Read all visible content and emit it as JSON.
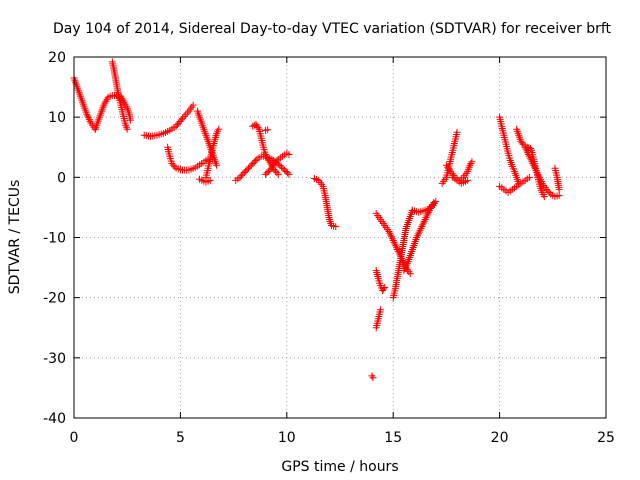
{
  "chart_data": {
    "type": "scatter",
    "title": "Day 104 of 2014, Sidereal Day-to-day VTEC variation (SDTVAR) for receiver brft",
    "xlabel": "GPS time / hours",
    "ylabel": "SDTVAR / TECUs",
    "xlim": [
      0,
      25
    ],
    "ylim": [
      -40,
      20
    ],
    "xticks": [
      0,
      5,
      10,
      15,
      20,
      25
    ],
    "yticks": [
      -40,
      -30,
      -20,
      -10,
      0,
      10,
      20
    ],
    "xtick_labels": [
      "0",
      "5",
      "10",
      "15",
      "20",
      "25"
    ],
    "ytick_labels": [
      "-40",
      "-30",
      "-20",
      "-10",
      "0",
      "10",
      "20"
    ],
    "grid": true,
    "marker": "+",
    "marker_color": "#ff0000",
    "series_segments": [
      [
        [
          0.0,
          16.5
        ],
        [
          0.2,
          14.5
        ],
        [
          0.4,
          12.5
        ],
        [
          0.6,
          10.5
        ],
        [
          0.8,
          9.0
        ],
        [
          1.0,
          8.0
        ]
      ],
      [
        [
          1.0,
          8.0
        ],
        [
          1.2,
          10.0
        ],
        [
          1.4,
          12.0
        ],
        [
          1.6,
          13.3
        ],
        [
          1.8,
          13.6
        ],
        [
          2.0,
          13.6
        ],
        [
          2.2,
          13.0
        ]
      ],
      [
        [
          1.8,
          19.2
        ],
        [
          1.9,
          17.5
        ],
        [
          2.0,
          15.5
        ],
        [
          2.1,
          13.5
        ],
        [
          2.2,
          12.0
        ],
        [
          2.3,
          10.5
        ],
        [
          2.4,
          9.0
        ],
        [
          2.5,
          8.0
        ]
      ],
      [
        [
          2.2,
          13.5
        ],
        [
          2.35,
          12.5
        ],
        [
          2.5,
          11.5
        ],
        [
          2.6,
          10.5
        ],
        [
          2.65,
          9.5
        ]
      ],
      [
        [
          3.3,
          7.0
        ],
        [
          3.6,
          6.8
        ],
        [
          3.9,
          7.0
        ],
        [
          4.2,
          7.3
        ],
        [
          4.5,
          7.8
        ],
        [
          4.8,
          8.5
        ],
        [
          5.1,
          9.8
        ],
        [
          5.4,
          11.0
        ],
        [
          5.6,
          12.0
        ]
      ],
      [
        [
          4.4,
          5.0
        ],
        [
          4.5,
          3.5
        ],
        [
          4.6,
          2.3
        ],
        [
          4.8,
          1.5
        ],
        [
          5.1,
          1.2
        ],
        [
          5.4,
          1.2
        ],
        [
          5.7,
          1.6
        ],
        [
          6.0,
          2.3
        ],
        [
          6.3,
          3.0
        ],
        [
          6.5,
          3.0
        ]
      ],
      [
        [
          5.8,
          11.0
        ],
        [
          5.9,
          10.0
        ],
        [
          6.0,
          9.0
        ],
        [
          6.1,
          8.0
        ],
        [
          6.2,
          7.0
        ],
        [
          6.3,
          6.0
        ],
        [
          6.4,
          5.0
        ],
        [
          6.5,
          4.0
        ],
        [
          6.6,
          3.0
        ],
        [
          6.7,
          2.0
        ]
      ],
      [
        [
          6.2,
          0.0
        ],
        [
          6.3,
          1.5
        ],
        [
          6.4,
          3.0
        ],
        [
          6.5,
          4.5
        ],
        [
          6.6,
          6.0
        ],
        [
          6.7,
          7.3
        ],
        [
          6.8,
          8.0
        ]
      ],
      [
        [
          5.9,
          -0.3
        ],
        [
          6.2,
          -0.8
        ],
        [
          6.4,
          -0.5
        ]
      ],
      [
        [
          7.6,
          -0.5
        ],
        [
          7.8,
          0.0
        ],
        [
          8.0,
          0.8
        ],
        [
          8.2,
          1.5
        ],
        [
          8.4,
          2.3
        ],
        [
          8.6,
          3.0
        ],
        [
          8.8,
          3.5
        ],
        [
          9.0,
          3.5
        ],
        [
          9.3,
          3.0
        ],
        [
          9.6,
          2.2
        ],
        [
          9.9,
          1.2
        ],
        [
          10.1,
          0.5
        ]
      ],
      [
        [
          8.4,
          8.5
        ],
        [
          8.55,
          8.8
        ],
        [
          8.7,
          8.0
        ],
        [
          8.8,
          6.5
        ],
        [
          8.9,
          5.0
        ],
        [
          9.0,
          3.8
        ],
        [
          9.2,
          2.5
        ],
        [
          9.4,
          1.3
        ],
        [
          9.6,
          0.5
        ]
      ],
      [
        [
          9.0,
          0.5
        ],
        [
          9.2,
          1.2
        ],
        [
          9.4,
          2.2
        ],
        [
          9.6,
          3.0
        ],
        [
          9.8,
          3.5
        ],
        [
          10.0,
          4.0
        ],
        [
          10.1,
          3.8
        ]
      ],
      [
        [
          9.0,
          7.8
        ],
        [
          9.1,
          7.9
        ]
      ],
      [
        [
          11.3,
          -0.2
        ],
        [
          11.5,
          -0.5
        ],
        [
          11.7,
          -1.5
        ],
        [
          11.8,
          -3.0
        ],
        [
          11.9,
          -5.0
        ],
        [
          12.0,
          -7.0
        ],
        [
          12.1,
          -8.0
        ],
        [
          12.3,
          -8.2
        ]
      ],
      [
        [
          14.0,
          -33.0
        ],
        [
          14.05,
          -33.3
        ]
      ],
      [
        [
          14.2,
          -25.0
        ],
        [
          14.3,
          -23.5
        ],
        [
          14.4,
          -22.0
        ]
      ],
      [
        [
          14.2,
          -15.5
        ],
        [
          14.3,
          -16.8
        ],
        [
          14.4,
          -18.0
        ],
        [
          14.5,
          -18.8
        ],
        [
          14.6,
          -18.3
        ]
      ],
      [
        [
          14.2,
          -6.0
        ],
        [
          14.4,
          -7.0
        ],
        [
          14.6,
          -8.0
        ],
        [
          14.8,
          -9.0
        ],
        [
          15.0,
          -10.5
        ],
        [
          15.2,
          -12.0
        ],
        [
          15.4,
          -13.5
        ],
        [
          15.6,
          -15.0
        ],
        [
          15.8,
          -16.0
        ]
      ],
      [
        [
          15.0,
          -20.0
        ],
        [
          15.1,
          -18.5
        ],
        [
          15.2,
          -16.5
        ],
        [
          15.3,
          -14.5
        ],
        [
          15.4,
          -12.5
        ],
        [
          15.5,
          -10.5
        ],
        [
          15.6,
          -8.5
        ],
        [
          15.8,
          -6.5
        ],
        [
          15.9,
          -5.5
        ]
      ],
      [
        [
          15.5,
          -15.5
        ],
        [
          15.7,
          -14.0
        ],
        [
          15.9,
          -12.0
        ],
        [
          16.1,
          -10.0
        ],
        [
          16.3,
          -8.5
        ],
        [
          16.5,
          -7.0
        ],
        [
          16.7,
          -5.5
        ],
        [
          16.9,
          -4.2
        ]
      ],
      [
        [
          15.9,
          -5.5
        ],
        [
          16.2,
          -5.8
        ],
        [
          16.5,
          -5.5
        ],
        [
          16.8,
          -5.0
        ],
        [
          17.0,
          -4.0
        ]
      ],
      [
        [
          17.3,
          -1.0
        ],
        [
          17.5,
          0.0
        ],
        [
          17.6,
          1.5
        ],
        [
          17.7,
          3.0
        ],
        [
          17.8,
          4.5
        ],
        [
          17.9,
          6.0
        ],
        [
          18.0,
          7.5
        ]
      ],
      [
        [
          17.5,
          2.0
        ],
        [
          17.7,
          1.0
        ],
        [
          17.9,
          0.0
        ],
        [
          18.1,
          -0.5
        ],
        [
          18.3,
          0.0
        ],
        [
          18.5,
          1.0
        ],
        [
          18.6,
          2.0
        ],
        [
          18.7,
          2.6
        ]
      ],
      [
        [
          17.8,
          0.0
        ],
        [
          18.0,
          -0.5
        ],
        [
          18.2,
          -1.0
        ],
        [
          18.5,
          -0.5
        ]
      ],
      [
        [
          20.0,
          10.0
        ],
        [
          20.1,
          8.5
        ],
        [
          20.2,
          7.0
        ],
        [
          20.3,
          5.5
        ],
        [
          20.4,
          4.0
        ],
        [
          20.5,
          2.8
        ],
        [
          20.6,
          1.8
        ],
        [
          20.7,
          1.0
        ],
        [
          20.8,
          0.0
        ],
        [
          20.9,
          -1.0
        ]
      ],
      [
        [
          20.0,
          -1.5
        ],
        [
          20.2,
          -2.0
        ],
        [
          20.4,
          -2.5
        ],
        [
          20.6,
          -2.0
        ],
        [
          20.8,
          -1.5
        ],
        [
          21.0,
          -1.0
        ],
        [
          21.2,
          -0.5
        ],
        [
          21.4,
          0.0
        ]
      ],
      [
        [
          20.8,
          8.0
        ],
        [
          20.9,
          7.0
        ],
        [
          21.0,
          6.0
        ],
        [
          21.1,
          5.5
        ],
        [
          21.3,
          5.0
        ],
        [
          21.45,
          4.8
        ]
      ],
      [
        [
          21.2,
          5.0
        ],
        [
          21.4,
          3.5
        ],
        [
          21.6,
          2.0
        ],
        [
          21.8,
          0.5
        ],
        [
          22.0,
          -1.0
        ],
        [
          22.2,
          -2.0
        ],
        [
          22.4,
          -2.8
        ],
        [
          22.6,
          -3.2
        ],
        [
          22.8,
          -3.0
        ]
      ],
      [
        [
          21.5,
          4.5
        ],
        [
          21.6,
          3.0
        ],
        [
          21.7,
          1.5
        ],
        [
          21.8,
          0.0
        ],
        [
          21.9,
          -1.5
        ],
        [
          22.0,
          -2.5
        ],
        [
          22.1,
          -3.2
        ]
      ],
      [
        [
          22.6,
          1.5
        ],
        [
          22.7,
          0.0
        ],
        [
          22.75,
          -1.0
        ],
        [
          22.8,
          -2.0
        ]
      ]
    ]
  }
}
